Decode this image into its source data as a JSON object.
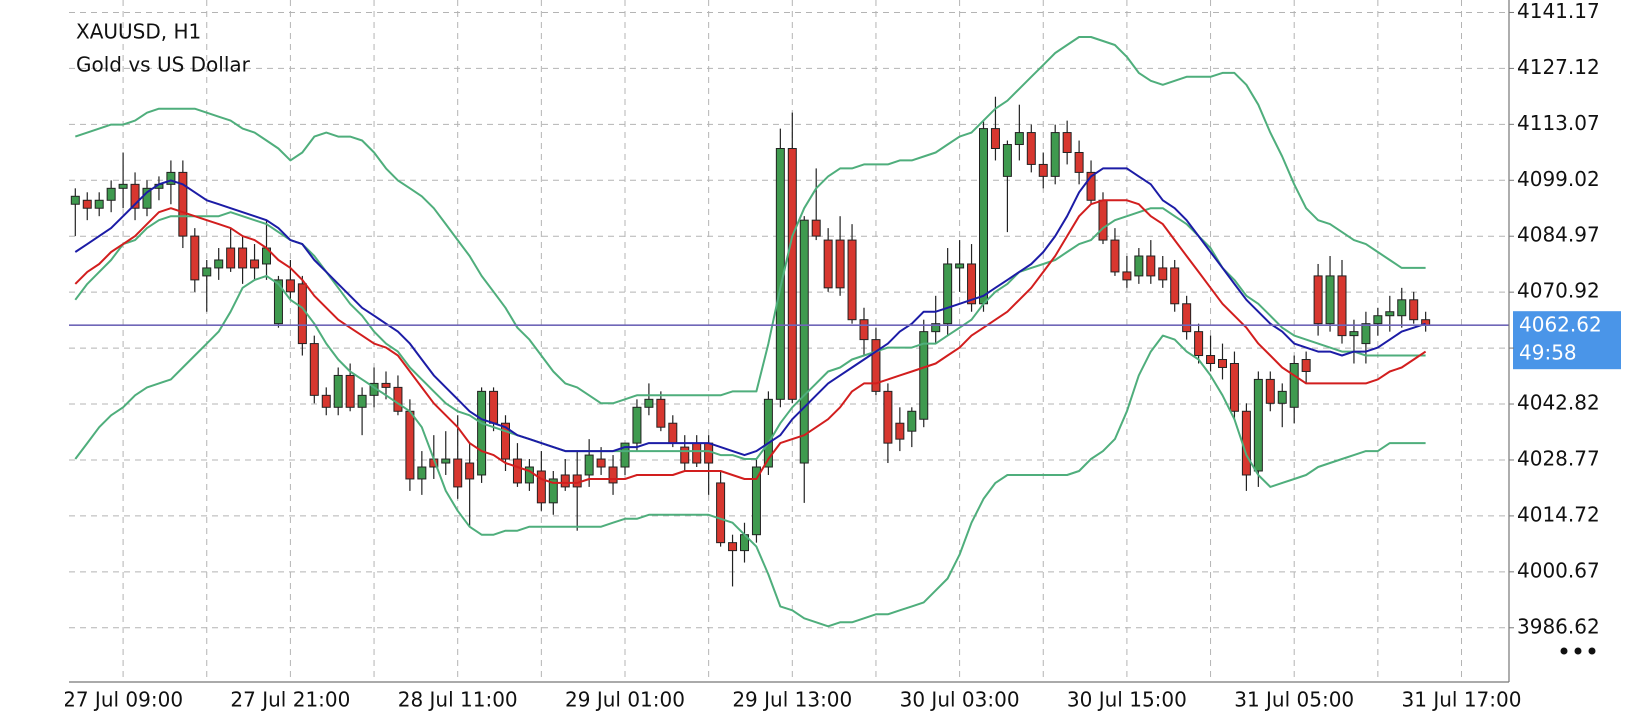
{
  "chart_data": {
    "type": "candlestick",
    "title": "XAUUSD, H1",
    "subtitle": "Gold vs US Dollar",
    "categories": [
      null,
      null,
      null,
      null,
      "27 Jul 09:00",
      null,
      null,
      null,
      null,
      null,
      null,
      null,
      null,
      null,
      null,
      null,
      null,
      null,
      "27 Jul 21:00",
      null,
      null,
      null,
      null,
      null,
      null,
      null,
      null,
      null,
      null,
      null,
      null,
      null,
      "28 Jul 11:00",
      null,
      null,
      null,
      null,
      null,
      null,
      null,
      null,
      null,
      null,
      null,
      null,
      null,
      "29 Jul 01:00",
      null,
      null,
      null,
      null,
      null,
      null,
      null,
      null,
      null,
      null,
      null,
      null,
      null,
      "29 Jul 13:00",
      null,
      null,
      null,
      null,
      null,
      null,
      null,
      null,
      null,
      null,
      null,
      null,
      null,
      "30 Jul 03:00",
      null,
      null,
      null,
      null,
      null,
      null,
      null,
      null,
      null,
      null,
      null,
      null,
      null,
      "30 Jul 15:00",
      null,
      null,
      null,
      null,
      null,
      null,
      null,
      null,
      null,
      null,
      null,
      null,
      null,
      "31 Jul 05:00",
      null,
      null,
      null,
      null,
      null,
      null,
      null,
      null,
      null,
      null,
      null,
      null,
      null,
      "31 Jul 17:00",
      null,
      null,
      null
    ],
    "open": [
      4093,
      4094,
      4092,
      4094,
      4097,
      4098,
      4092,
      4097,
      4098,
      4101,
      4085,
      4075,
      4077,
      4082,
      4082,
      4079,
      4078,
      4063,
      4074,
      4073,
      4058,
      4045,
      4042,
      4050,
      4042,
      4045,
      4048,
      4047,
      4041,
      4024,
      4029,
      4028,
      4029,
      4028,
      4025,
      4046,
      4038,
      4029,
      4023,
      4026,
      4018,
      4025,
      4025,
      4025,
      4029,
      4027,
      4027,
      4033,
      4042,
      4044,
      4038,
      4032,
      4033,
      4033,
      4023,
      4008,
      4006,
      4010,
      4027,
      4044,
      4107,
      4028,
      4089,
      4084,
      4084,
      4084,
      4064,
      4059,
      4046,
      4038,
      4036,
      4039,
      4061,
      4063,
      4077,
      4078,
      4068,
      4112,
      4100,
      4108,
      4111,
      4103,
      4100,
      4111,
      4106,
      4101,
      4094,
      4084,
      4076,
      4075,
      4080,
      4077,
      4077,
      4068,
      4061,
      4055,
      4054,
      4053,
      4041,
      4026,
      4049,
      4043,
      4042,
      4054,
      4075,
      4063,
      4075,
      4060,
      4058,
      4063,
      4065,
      4065,
      4069,
      4064,
      null,
      null,
      null,
      null,
      null,
      null
    ],
    "high": [
      4097,
      4096,
      4096,
      4099,
      4106,
      4101,
      4099,
      4100,
      4104,
      4104,
      4087,
      4079,
      4082,
      4087,
      4085,
      4083,
      4089,
      4075,
      4079,
      4075,
      4060,
      4047,
      4052,
      4053,
      4047,
      4052,
      4051,
      4050,
      4044,
      4031,
      4035,
      4036,
      4040,
      4033,
      4047,
      4047,
      4040,
      4033,
      4029,
      4031,
      4026,
      4029,
      4031,
      4034,
      4032,
      4030,
      4033,
      4044,
      4048,
      4046,
      4040,
      4035,
      4035,
      4035,
      4026,
      4010,
      4013,
      4029,
      4046,
      4112,
      4116,
      4090,
      4102,
      4087,
      4090,
      4088,
      4067,
      4062,
      4048,
      4042,
      4042,
      4064,
      4070,
      4082,
      4084,
      4083,
      4114,
      4120,
      4109,
      4118,
      4113,
      4106,
      4113,
      4114,
      4109,
      4104,
      4096,
      4087,
      4080,
      4082,
      4084,
      4080,
      4079,
      4070,
      4063,
      4060,
      4058,
      4056,
      4043,
      4051,
      4051,
      4048,
      4055,
      4056,
      4078,
      4080,
      4079,
      4064,
      4066,
      4067,
      4070,
      4072,
      4071,
      4066,
      null,
      null,
      null,
      null,
      null,
      null
    ],
    "low": [
      4085,
      4089,
      4090,
      4091,
      4092,
      4089,
      4090,
      4094,
      4093,
      4082,
      4071,
      4066,
      4074,
      4076,
      4073,
      4074,
      4074,
      4062,
      4069,
      4055,
      4043,
      4040,
      4040,
      4041,
      4035,
      4042,
      4044,
      4040,
      4021,
      4020,
      4024,
      4025,
      4019,
      4012,
      4023,
      4036,
      4026,
      4022,
      4021,
      4016,
      4015,
      4021,
      4011,
      4022,
      4025,
      4020,
      4025,
      4031,
      4040,
      4036,
      4032,
      4026,
      4027,
      4020,
      4007,
      3997,
      4003,
      4008,
      4025,
      4042,
      4043,
      4018,
      4084,
      4071,
      4070,
      4063,
      4055,
      4045,
      4028,
      4031,
      4032,
      4037,
      4058,
      4060,
      4071,
      4066,
      4066,
      4104,
      4086,
      4104,
      4101,
      4097,
      4098,
      4103,
      4098,
      4093,
      4083,
      4075,
      4072,
      4073,
      4073,
      4072,
      4066,
      4059,
      4053,
      4051,
      4049,
      4039,
      4021,
      4022,
      4041,
      4037,
      4038,
      4048,
      4060,
      4061,
      4058,
      4053,
      4053,
      4060,
      4061,
      4062,
      4063,
      4061,
      null,
      null,
      null,
      null,
      null,
      null
    ],
    "close": [
      4095,
      4092,
      4094,
      4097,
      4098,
      4092,
      4097,
      4098,
      4101,
      4085,
      4074,
      4077,
      4079,
      4077,
      4077,
      4077,
      4082,
      4074,
      4071,
      4058,
      4045,
      4042,
      4050,
      4042,
      4045,
      4048,
      4047,
      4041,
      4024,
      4027,
      4027,
      4029,
      4022,
      4024,
      4046,
      4038,
      4029,
      4023,
      4027,
      4018,
      4024,
      4022,
      4022,
      4030,
      4027,
      4023,
      4033,
      4042,
      4044,
      4037,
      4033,
      4028,
      4028,
      4028,
      4008,
      4006,
      4010,
      4027,
      4044,
      4107,
      4044,
      4089,
      4085,
      4072,
      4072,
      4064,
      4059,
      4046,
      4033,
      4034,
      4041,
      4061,
      4063,
      4078,
      4078,
      4068,
      4112,
      4107,
      4108,
      4111,
      4103,
      4100,
      4111,
      4106,
      4101,
      4094,
      4084,
      4076,
      4074,
      4080,
      4075,
      4074,
      4068,
      4061,
      4055,
      4053,
      4052,
      4041,
      4025,
      4049,
      4043,
      4046,
      4053,
      4051,
      4063,
      4075,
      4060,
      4061,
      4063,
      4065,
      4066,
      4069,
      4064,
      4062.62,
      null,
      null,
      null,
      null,
      null,
      null
    ],
    "up_color": "#3f9a4f",
    "down_color": "#d7372f",
    "series": [
      {
        "color": "#4fae7c",
        "values": [
          4110,
          4111,
          4112,
          4113,
          4113,
          4114,
          4116,
          4117,
          4117,
          4117,
          4117,
          4116,
          4115,
          4114,
          4112,
          4111,
          4109,
          4107,
          4104,
          4106,
          4110,
          4111,
          4110,
          4110,
          4109,
          4106,
          4102,
          4099,
          4097,
          4095,
          4092,
          4088,
          4084,
          4080,
          4075,
          4071,
          4067,
          4062,
          4059,
          4055,
          4051,
          4048,
          4047,
          4045,
          4043,
          4043,
          4044,
          4045,
          4045,
          4045,
          4045,
          4045,
          4045,
          4045,
          4045,
          4046,
          4046,
          4046,
          4058,
          4072,
          4085,
          4092,
          4097,
          4100,
          4102,
          4102,
          4103,
          4103,
          4103,
          4104,
          4104,
          4105,
          4106,
          4108,
          4110,
          4111,
          4114,
          4117,
          4119,
          4122,
          4125,
          4128,
          4131,
          4133,
          4135,
          4135,
          4134,
          4133,
          4130,
          4126,
          4124,
          4123,
          4124,
          4125,
          4125,
          4125,
          4126,
          4126,
          4123,
          4118,
          4111,
          4105,
          4098,
          4092,
          4089,
          4088,
          4086,
          4084,
          4083,
          4081,
          4079,
          4077,
          4077,
          4077,
          null,
          null,
          null,
          null,
          null,
          null
        ]
      },
      {
        "color": "#4fae7c",
        "values": [
          4029,
          4033,
          4037,
          4040,
          4042,
          4045,
          4047,
          4048,
          4049,
          4052,
          4055,
          4058,
          4061,
          4066,
          4072,
          4074,
          4075,
          4073,
          4069,
          4067,
          4063,
          4058,
          4054,
          4051,
          4049,
          4047,
          4045,
          4043,
          4041,
          4037,
          4029,
          4021,
          4016,
          4012,
          4010,
          4010,
          4011,
          4011,
          4012,
          4012,
          4012,
          4012,
          4012,
          4012,
          4012,
          4013,
          4014,
          4014,
          4015,
          4015,
          4015,
          4015,
          4015,
          4015,
          4014,
          4013,
          4010,
          4007,
          4000,
          3992,
          3991,
          3989,
          3988,
          3987,
          3988,
          3988,
          3989,
          3990,
          3990,
          3991,
          3992,
          3993,
          3996,
          3999,
          4005,
          4013,
          4019,
          4023,
          4025,
          4025,
          4025,
          4025,
          4025,
          4025,
          4026,
          4029,
          4031,
          4034,
          4041,
          4050,
          4056,
          4060,
          4059,
          4056,
          4054,
          4050,
          4045,
          4039,
          4030,
          4025,
          4022,
          4023,
          4024,
          4025,
          4027,
          4028,
          4029,
          4030,
          4031,
          4031,
          4033,
          4033,
          4033,
          4033,
          null,
          null,
          null,
          null,
          null,
          null
        ]
      },
      {
        "color": "#4fae7c",
        "values": [
          4069,
          4073,
          4076,
          4079,
          4083,
          4084,
          4087,
          4089,
          4090,
          4090,
          4090,
          4090,
          4090,
          4091,
          4090,
          4089,
          4088,
          4086,
          4084,
          4083,
          4080,
          4076,
          4072,
          4068,
          4065,
          4061,
          4058,
          4056,
          4052,
          4049,
          4046,
          4043,
          4041,
          4040,
          4038,
          4037,
          4036,
          4035,
          4034,
          4033,
          4032,
          4031,
          4031,
          4031,
          4031,
          4031,
          4031,
          4031,
          4031,
          4031,
          4031,
          4031,
          4031,
          4031,
          4030,
          4030,
          4029,
          4029,
          4033,
          4038,
          4042,
          4045,
          4048,
          4051,
          4052,
          4054,
          4055,
          4056,
          4057,
          4057,
          4057,
          4058,
          4058,
          4060,
          4062,
          4064,
          4068,
          4071,
          4073,
          4076,
          4077,
          4078,
          4079,
          4081,
          4083,
          4084,
          4087,
          4089,
          4090,
          4091,
          4092,
          4092,
          4090,
          4088,
          4085,
          4082,
          4077,
          4074,
          4070,
          4068,
          4065,
          4062,
          4060,
          4059,
          4058,
          4057,
          4056,
          4056,
          4055,
          4055,
          4055,
          4055,
          4055,
          4055,
          null,
          null,
          null,
          null,
          null,
          null
        ]
      },
      {
        "color": "#d21e1e",
        "values": [
          4073,
          4076,
          4078,
          4081,
          4083,
          4085,
          4088,
          4091,
          4092,
          4091,
          4090,
          4089,
          4088,
          4087,
          4085,
          4084,
          4082,
          4079,
          4077,
          4074,
          4070,
          4067,
          4064,
          4062,
          4060,
          4058,
          4057,
          4055,
          4051,
          4047,
          4043,
          4040,
          4037,
          4033,
          4031,
          4030,
          4028,
          4027,
          4026,
          4024,
          4023,
          4023,
          4023,
          4024,
          4024,
          4024,
          4024,
          4025,
          4025,
          4025,
          4025,
          4026,
          4026,
          4026,
          4026,
          4025,
          4024,
          4024,
          4029,
          4033,
          4034,
          4035,
          4037,
          4039,
          4042,
          4046,
          4048,
          4048,
          4049,
          4050,
          4051,
          4052,
          4053,
          4055,
          4057,
          4060,
          4062,
          4064,
          4066,
          4069,
          4072,
          4076,
          4080,
          4085,
          4090,
          4093,
          4094,
          4094,
          4094,
          4093,
          4090,
          4088,
          4084,
          4080,
          4076,
          4072,
          4068,
          4065,
          4062,
          4058,
          4055,
          4052,
          4050,
          4048,
          4048,
          4048,
          4048,
          4048,
          4048,
          4049,
          4051,
          4052,
          4054,
          4056,
          null,
          null,
          null,
          null,
          null,
          null
        ]
      },
      {
        "color": "#1c1ca6",
        "values": [
          4081,
          4083,
          4085,
          4087,
          4090,
          4093,
          4096,
          4098,
          4099,
          4098,
          4096,
          4094,
          4093,
          4092,
          4091,
          4090,
          4089,
          4087,
          4084,
          4083,
          4079,
          4076,
          4073,
          4070,
          4067,
          4065,
          4063,
          4061,
          4058,
          4054,
          4050,
          4047,
          4044,
          4041,
          4039,
          4038,
          4037,
          4035,
          4034,
          4033,
          4032,
          4031,
          4031,
          4031,
          4031,
          4031,
          4032,
          4032,
          4033,
          4033,
          4033,
          4033,
          4033,
          4033,
          4032,
          4031,
          4030,
          4031,
          4033,
          4035,
          4039,
          4042,
          4045,
          4048,
          4050,
          4052,
          4054,
          4056,
          4058,
          4061,
          4063,
          4066,
          4066,
          4067,
          4068,
          4069,
          4070,
          4072,
          4074,
          4076,
          4078,
          4081,
          4085,
          4090,
          4096,
          4100,
          4102,
          4102,
          4102,
          4100,
          4098,
          4094,
          4092,
          4089,
          4085,
          4081,
          4077,
          4073,
          4069,
          4066,
          4063,
          4061,
          4058,
          4057,
          4056,
          4056,
          4055,
          4056,
          4056,
          4057,
          4059,
          4061,
          4062,
          4063,
          null,
          null,
          null,
          null,
          null,
          null
        ]
      }
    ],
    "ylim": [
      3973.0,
      4144.3
    ],
    "yticks": [
      3986.62,
      4000.67,
      4014.72,
      4028.77,
      4042.82,
      {
        "value": 4056.87,
        "label": null
      },
      4070.92,
      4084.97,
      4099.02,
      4113.07,
      4127.12,
      4141.17
    ],
    "grid": true,
    "current_price": 4062.62,
    "current_price_color": "#6f66b8",
    "price_box_color": "#4a95e8",
    "countdown": "49:58"
  }
}
